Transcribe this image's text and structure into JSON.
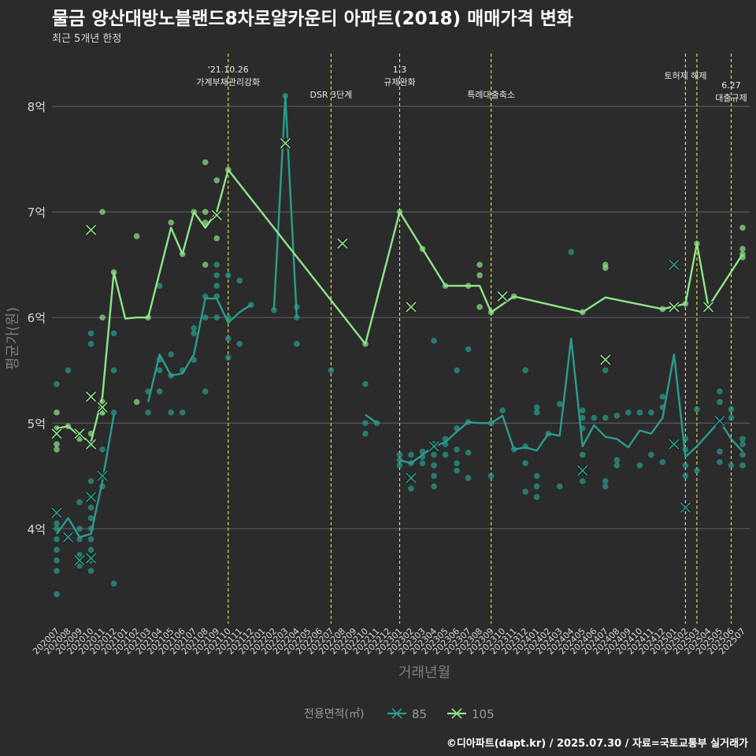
{
  "header": {
    "title": "물금 양산대방노블랜드8차로얄카운티 아파트(2018) 매매가격 변화",
    "subtitle": "최근 5개년 한정"
  },
  "footer": {
    "caption": "©디아파트(dapt.kr) / 2025.07.30 / 자료=국토교통부 실거래가"
  },
  "colors": {
    "background": "#2b2b2b",
    "grid": "#5a5a5a",
    "series_85": "#2a9d8f",
    "series_105": "#8fe58a",
    "event_line": "#e8e84a",
    "text": "#d9d9d9"
  },
  "chart_data": {
    "type": "line",
    "xlabel": "거래년월",
    "ylabel": "평균가(원)",
    "ylim": [
      3.1,
      8.5
    ],
    "y_ticks": [
      4,
      5,
      6,
      7,
      8
    ],
    "y_tick_labels": [
      "4억",
      "5억",
      "6억",
      "7억",
      "8억"
    ],
    "categories": [
      "202007",
      "202008",
      "202009",
      "202010",
      "202011",
      "202012",
      "202101",
      "202102",
      "202103",
      "202104",
      "202105",
      "202106",
      "202107",
      "202108",
      "202109",
      "202110",
      "202111",
      "202112",
      "202201",
      "202202",
      "202203",
      "202204",
      "202205",
      "202206",
      "202207",
      "202208",
      "202209",
      "202210",
      "202211",
      "202212",
      "202301",
      "202302",
      "202303",
      "202304",
      "202305",
      "202306",
      "202307",
      "202308",
      "202309",
      "202310",
      "202311",
      "202312",
      "202401",
      "202402",
      "202403",
      "202404",
      "202405",
      "202406",
      "202407",
      "202408",
      "202409",
      "202410",
      "202411",
      "202412",
      "202501",
      "202502",
      "202503",
      "202504",
      "202505",
      "202506",
      "202507"
    ],
    "legend_title": "전용면적(㎡)",
    "legend_position": "bottom",
    "grid": true,
    "series": [
      {
        "name": "85",
        "values": [
          3.95,
          4.1,
          3.92,
          3.95,
          4.45,
          5.08,
          null,
          null,
          5.2,
          5.65,
          5.45,
          5.47,
          5.65,
          6.18,
          6.18,
          5.95,
          6.05,
          6.12,
          null,
          6.07,
          8.1,
          6.0,
          null,
          null,
          null,
          null,
          null,
          5.08,
          5.0,
          null,
          4.65,
          4.62,
          4.7,
          4.78,
          4.82,
          4.92,
          5.01,
          5.0,
          5.0,
          5.07,
          4.75,
          4.77,
          4.74,
          4.9,
          4.88,
          5.8,
          4.78,
          4.98,
          4.87,
          4.85,
          4.77,
          4.93,
          4.9,
          5.05,
          5.65,
          4.68,
          4.78,
          4.9,
          5.02,
          4.85,
          4.73
        ],
        "points": [
          [
            "202007",
            3.38
          ],
          [
            "202007",
            3.6
          ],
          [
            "202007",
            3.7
          ],
          [
            "202007",
            3.8
          ],
          [
            "202007",
            3.9
          ],
          [
            "202007",
            4.0
          ],
          [
            "202007",
            4.05
          ],
          [
            "202007",
            4.15
          ],
          [
            "202007",
            5.37
          ],
          [
            "202008",
            3.92
          ],
          [
            "202008",
            5.5
          ],
          [
            "202009",
            3.65
          ],
          [
            "202009",
            3.75
          ],
          [
            "202009",
            3.9
          ],
          [
            "202009",
            4.0
          ],
          [
            "202009",
            4.25
          ],
          [
            "202010",
            3.6
          ],
          [
            "202010",
            3.7
          ],
          [
            "202010",
            3.8
          ],
          [
            "202010",
            3.9
          ],
          [
            "202010",
            4.0
          ],
          [
            "202010",
            4.1
          ],
          [
            "202010",
            4.2
          ],
          [
            "202010",
            4.3
          ],
          [
            "202010",
            4.45
          ],
          [
            "202010",
            5.75
          ],
          [
            "202010",
            5.85
          ],
          [
            "202011",
            4.4
          ],
          [
            "202011",
            4.5
          ],
          [
            "202011",
            4.75
          ],
          [
            "202011",
            5.1
          ],
          [
            "202012",
            3.48
          ],
          [
            "202012",
            5.1
          ],
          [
            "202012",
            5.5
          ],
          [
            "202012",
            5.85
          ],
          [
            "202103",
            5.1
          ],
          [
            "202103",
            5.3
          ],
          [
            "202104",
            5.3
          ],
          [
            "202104",
            5.5
          ],
          [
            "202104",
            5.6
          ],
          [
            "202104",
            6.3
          ],
          [
            "202105",
            5.1
          ],
          [
            "202105",
            5.45
          ],
          [
            "202105",
            5.65
          ],
          [
            "202106",
            5.1
          ],
          [
            "202106",
            5.5
          ],
          [
            "202107",
            5.6
          ],
          [
            "202107",
            5.85
          ],
          [
            "202107",
            5.9
          ],
          [
            "202108",
            5.3
          ],
          [
            "202108",
            6.0
          ],
          [
            "202108",
            6.2
          ],
          [
            "202109",
            6.0
          ],
          [
            "202109",
            6.2
          ],
          [
            "202109",
            6.3
          ],
          [
            "202109",
            6.4
          ],
          [
            "202109",
            6.5
          ],
          [
            "202110",
            5.62
          ],
          [
            "202110",
            5.8
          ],
          [
            "202110",
            6.0
          ],
          [
            "202110",
            6.4
          ],
          [
            "202111",
            5.75
          ],
          [
            "202111",
            6.35
          ],
          [
            "202112",
            6.12
          ],
          [
            "202202",
            6.07
          ],
          [
            "202203",
            8.1
          ],
          [
            "202204",
            5.75
          ],
          [
            "202204",
            6.0
          ],
          [
            "202204",
            6.1
          ],
          [
            "202207",
            5.5
          ],
          [
            "202210",
            4.9
          ],
          [
            "202210",
            5.0
          ],
          [
            "202210",
            5.37
          ],
          [
            "202211",
            5.0
          ],
          [
            "202301",
            4.6
          ],
          [
            "202301",
            4.65
          ],
          [
            "202301",
            4.7
          ],
          [
            "202302",
            4.38
          ],
          [
            "202302",
            4.48
          ],
          [
            "202302",
            4.62
          ],
          [
            "202302",
            4.7
          ],
          [
            "202303",
            4.62
          ],
          [
            "202303",
            4.68
          ],
          [
            "202303",
            4.73
          ],
          [
            "202304",
            4.4
          ],
          [
            "202304",
            4.5
          ],
          [
            "202304",
            4.6
          ],
          [
            "202304",
            4.7
          ],
          [
            "202304",
            4.8
          ],
          [
            "202304",
            5.78
          ],
          [
            "202305",
            4.7
          ],
          [
            "202305",
            4.8
          ],
          [
            "202305",
            4.85
          ],
          [
            "202306",
            4.55
          ],
          [
            "202306",
            4.62
          ],
          [
            "202306",
            4.75
          ],
          [
            "202306",
            4.95
          ],
          [
            "202306",
            5.5
          ],
          [
            "202307",
            4.48
          ],
          [
            "202307",
            4.72
          ],
          [
            "202307",
            5.01
          ],
          [
            "202307",
            5.7
          ],
          [
            "202309",
            4.5
          ],
          [
            "202309",
            5.0
          ],
          [
            "202310",
            5.12
          ],
          [
            "202311",
            4.75
          ],
          [
            "202312",
            4.35
          ],
          [
            "202312",
            4.62
          ],
          [
            "202312",
            4.78
          ],
          [
            "202312",
            5.5
          ],
          [
            "202401",
            4.3
          ],
          [
            "202401",
            4.4
          ],
          [
            "202401",
            4.5
          ],
          [
            "202401",
            5.1
          ],
          [
            "202401",
            5.15
          ],
          [
            "202402",
            4.9
          ],
          [
            "202403",
            4.4
          ],
          [
            "202403",
            5.18
          ],
          [
            "202404",
            6.62
          ],
          [
            "202405",
            4.45
          ],
          [
            "202405",
            4.55
          ],
          [
            "202405",
            4.7
          ],
          [
            "202405",
            4.95
          ],
          [
            "202405",
            5.05
          ],
          [
            "202405",
            5.12
          ],
          [
            "202406",
            5.05
          ],
          [
            "202407",
            4.4
          ],
          [
            "202407",
            4.45
          ],
          [
            "202407",
            5.05
          ],
          [
            "202407",
            5.5
          ],
          [
            "202408",
            4.6
          ],
          [
            "202408",
            4.65
          ],
          [
            "202408",
            5.07
          ],
          [
            "202409",
            5.1
          ],
          [
            "202410",
            4.6
          ],
          [
            "202410",
            5.1
          ],
          [
            "202411",
            4.7
          ],
          [
            "202411",
            5.1
          ],
          [
            "202412",
            4.63
          ],
          [
            "202412",
            5.15
          ],
          [
            "202412",
            5.25
          ],
          [
            "202501",
            4.8
          ],
          [
            "202501",
            6.5
          ],
          [
            "202502",
            4.5
          ],
          [
            "202502",
            4.6
          ],
          [
            "202502",
            4.75
          ],
          [
            "202502",
            4.85
          ],
          [
            "202503",
            4.55
          ],
          [
            "202503",
            5.13
          ],
          [
            "202505",
            4.63
          ],
          [
            "202505",
            4.73
          ],
          [
            "202505",
            5.2
          ],
          [
            "202505",
            5.3
          ],
          [
            "202506",
            4.6
          ],
          [
            "202506",
            5.05
          ],
          [
            "202506",
            5.13
          ],
          [
            "202507",
            4.6
          ],
          [
            "202507",
            4.7
          ],
          [
            "202507",
            4.8
          ],
          [
            "202507",
            4.85
          ]
        ],
        "cross_marks": [
          [
            "202007",
            4.15
          ],
          [
            "202008",
            3.92
          ],
          [
            "202009",
            3.7
          ],
          [
            "202010",
            3.72
          ],
          [
            "202010",
            4.3
          ],
          [
            "202011",
            4.5
          ],
          [
            "202302",
            4.48
          ],
          [
            "202304",
            4.78
          ],
          [
            "202405",
            4.55
          ],
          [
            "202501",
            4.8
          ],
          [
            "202501",
            6.5
          ],
          [
            "202502",
            4.2
          ],
          [
            "202505",
            5.02
          ]
        ]
      },
      {
        "name": "105",
        "values": [
          4.95,
          4.97,
          4.88,
          4.82,
          5.25,
          6.43,
          5.99,
          6.0,
          6.0,
          null,
          6.85,
          6.6,
          7.0,
          6.85,
          7.0,
          7.4,
          null,
          null,
          null,
          null,
          null,
          null,
          null,
          null,
          null,
          null,
          null,
          5.75,
          null,
          null,
          7.0,
          null,
          6.65,
          null,
          6.3,
          null,
          6.3,
          6.3,
          6.05,
          null,
          6.2,
          null,
          null,
          null,
          null,
          null,
          6.05,
          null,
          6.19,
          null,
          null,
          null,
          null,
          6.08,
          null,
          6.13,
          6.7,
          6.1,
          null,
          null,
          6.6
        ],
        "points": [
          [
            "202007",
            4.75
          ],
          [
            "202007",
            4.8
          ],
          [
            "202007",
            4.95
          ],
          [
            "202007",
            5.1
          ],
          [
            "202008",
            4.97
          ],
          [
            "202009",
            4.85
          ],
          [
            "202009",
            4.9
          ],
          [
            "202010",
            4.8
          ],
          [
            "202010",
            4.9
          ],
          [
            "202011",
            5.1
          ],
          [
            "202011",
            5.2
          ],
          [
            "202011",
            6.0
          ],
          [
            "202011",
            7.0
          ],
          [
            "202012",
            6.43
          ],
          [
            "202102",
            5.2
          ],
          [
            "202102",
            6.77
          ],
          [
            "202103",
            6.0
          ],
          [
            "202105",
            6.9
          ],
          [
            "202106",
            6.6
          ],
          [
            "202107",
            7.0
          ],
          [
            "202108",
            6.5
          ],
          [
            "202108",
            6.9
          ],
          [
            "202108",
            7.0
          ],
          [
            "202108",
            7.47
          ],
          [
            "202109",
            6.75
          ],
          [
            "202109",
            7.3
          ],
          [
            "202110",
            7.4
          ],
          [
            "202210",
            5.75
          ],
          [
            "202301",
            7.0
          ],
          [
            "202303",
            6.65
          ],
          [
            "202305",
            6.3
          ],
          [
            "202307",
            6.3
          ],
          [
            "202308",
            6.1
          ],
          [
            "202308",
            6.4
          ],
          [
            "202308",
            6.5
          ],
          [
            "202309",
            6.05
          ],
          [
            "202311",
            6.2
          ],
          [
            "202405",
            6.05
          ],
          [
            "202407",
            6.47
          ],
          [
            "202407",
            6.5
          ],
          [
            "202412",
            6.08
          ],
          [
            "202502",
            6.13
          ],
          [
            "202503",
            6.7
          ],
          [
            "202504",
            6.1
          ],
          [
            "202507",
            6.57
          ],
          [
            "202507",
            6.6
          ],
          [
            "202507",
            6.65
          ],
          [
            "202507",
            6.85
          ]
        ],
        "cross_marks": [
          [
            "202007",
            4.9
          ],
          [
            "202009",
            4.9
          ],
          [
            "202010",
            4.8
          ],
          [
            "202010",
            5.25
          ],
          [
            "202010",
            6.83
          ],
          [
            "202011",
            5.15
          ],
          [
            "202109",
            6.97
          ],
          [
            "202203",
            7.65
          ],
          [
            "202208",
            6.7
          ],
          [
            "202302",
            6.1
          ],
          [
            "202310",
            6.2
          ],
          [
            "202407",
            5.6
          ],
          [
            "202501",
            6.1
          ],
          [
            "202504",
            6.1
          ]
        ]
      }
    ],
    "events": [
      {
        "category": "202110",
        "label": "'21.10.26\n가계부채관리강화"
      },
      {
        "category": "202207",
        "label": "DSR 3단계"
      },
      {
        "category": "202301",
        "label": "1.3\n규제완화"
      },
      {
        "category": "202309",
        "label": "특례대출축소"
      },
      {
        "category": "202502",
        "label": "토허제 해제"
      },
      {
        "category": "202503",
        "label": ""
      },
      {
        "category": "202506",
        "label": "6.27\n대출규제"
      }
    ]
  }
}
